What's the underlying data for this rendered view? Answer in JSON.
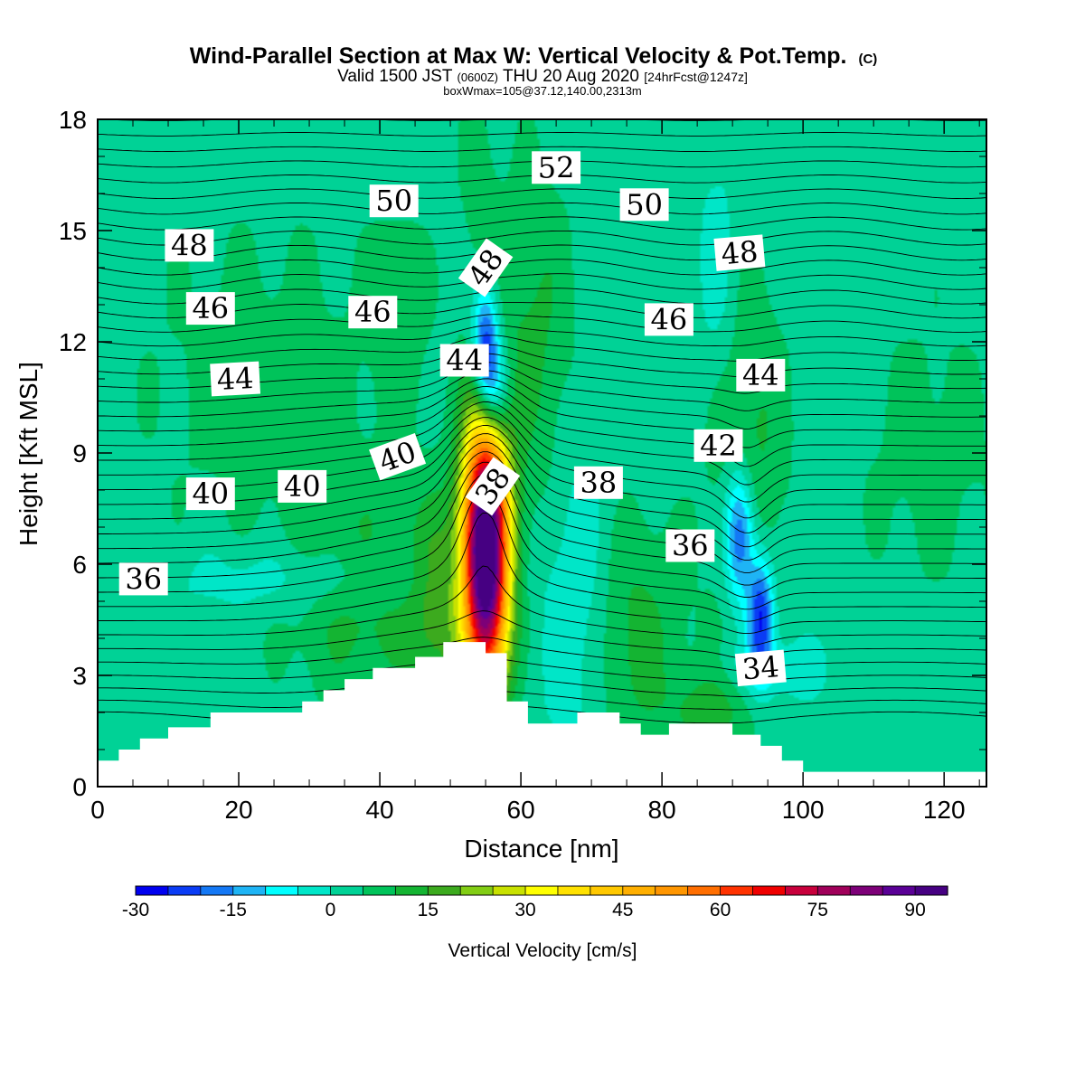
{
  "chart_data": {
    "type": "heatmap",
    "title": {
      "main": "Wind-Parallel Section at Max W: Vertical Velocity & Pot.Temp.",
      "copyright": "(C)",
      "valid_prefix": "Valid 1500 JST",
      "valid_utc": "(0600Z)",
      "valid_date": "THU 20 Aug 2020",
      "forecast": "[24hrFcst@1247z]",
      "boxwmax": "boxWmax=105@37.12,140.00,2313m"
    },
    "xlabel": "Distance [nm]",
    "ylabel": "Height [Kft MSL]",
    "xlim": [
      0,
      126
    ],
    "ylim": [
      0,
      18
    ],
    "x_ticks": [
      0,
      20,
      40,
      60,
      80,
      100,
      120
    ],
    "y_ticks": [
      0,
      3,
      6,
      9,
      12,
      15,
      18
    ],
    "colorbar": {
      "label": "Vertical Velocity [cm/s]",
      "min": -30,
      "max": 95,
      "step": 5,
      "tick_values": [
        -30,
        -15,
        0,
        15,
        30,
        45,
        60,
        75,
        90
      ],
      "tick_labels": [
        "-30",
        "-15",
        "0",
        "15",
        "30",
        "45",
        "60",
        "75",
        "90"
      ],
      "colors": [
        "#0000f0",
        "#0a3cf5",
        "#1478f5",
        "#1eb4f5",
        "#00ffff",
        "#00e6c8",
        "#00d296",
        "#00c35a",
        "#14b432",
        "#3caa1e",
        "#82cd14",
        "#c8e100",
        "#ffff00",
        "#ffe100",
        "#ffc800",
        "#ffaf00",
        "#ff9600",
        "#ff6e00",
        "#ff3200",
        "#f00000",
        "#c8003c",
        "#a0005a",
        "#7d0078",
        "#5a0096",
        "#460082"
      ]
    },
    "terrain_nm_kft": [
      [
        0,
        0.7
      ],
      [
        3,
        0.7
      ],
      [
        3,
        1.0
      ],
      [
        6,
        1.0
      ],
      [
        6,
        1.3
      ],
      [
        10,
        1.3
      ],
      [
        10,
        1.6
      ],
      [
        16,
        1.6
      ],
      [
        16,
        2.0
      ],
      [
        29,
        2.0
      ],
      [
        29,
        2.3
      ],
      [
        32,
        2.3
      ],
      [
        32,
        2.6
      ],
      [
        35,
        2.6
      ],
      [
        35,
        2.9
      ],
      [
        39,
        2.9
      ],
      [
        39,
        3.2
      ],
      [
        45,
        3.2
      ],
      [
        45,
        3.5
      ],
      [
        49,
        3.5
      ],
      [
        49,
        3.9
      ],
      [
        55,
        3.9
      ],
      [
        55,
        3.6
      ],
      [
        58,
        3.6
      ],
      [
        58,
        2.3
      ],
      [
        61,
        2.3
      ],
      [
        61,
        1.7
      ],
      [
        68,
        1.7
      ],
      [
        68,
        2.0
      ],
      [
        74,
        2.0
      ],
      [
        74,
        1.7
      ],
      [
        77,
        1.7
      ],
      [
        77,
        1.4
      ],
      [
        81,
        1.4
      ],
      [
        81,
        1.7
      ],
      [
        90,
        1.7
      ],
      [
        90,
        1.4
      ],
      [
        94,
        1.4
      ],
      [
        94,
        1.1
      ],
      [
        97,
        1.1
      ],
      [
        97,
        0.7
      ],
      [
        100,
        0.7
      ],
      [
        100,
        0.4
      ],
      [
        126,
        0.4
      ]
    ],
    "w_features": [
      {
        "x": 55,
        "y": 6.3,
        "sx": 2.3,
        "sy": 2.6,
        "amp": 105
      },
      {
        "x": 55,
        "y": 11.8,
        "sx": 1.3,
        "sy": 1.2,
        "amp": -32
      },
      {
        "x": 56.5,
        "y": 10.6,
        "sx": 1.5,
        "sy": 1.0,
        "amp": -20
      },
      {
        "x": 91,
        "y": 6.8,
        "sx": 1.5,
        "sy": 1.3,
        "amp": -28
      },
      {
        "x": 94,
        "y": 4.6,
        "sx": 1.3,
        "sy": 1.1,
        "amp": -30
      },
      {
        "x": 94,
        "y": 3.2,
        "sx": 6,
        "sy": 0.6,
        "amp": -8
      },
      {
        "x": 68,
        "y": 5,
        "sx": 3.5,
        "sy": 3,
        "amp": -8
      },
      {
        "x": 30,
        "y": 5.6,
        "sx": 14,
        "sy": 0.7,
        "amp": -7
      },
      {
        "x": 88,
        "y": 13.5,
        "sx": 2,
        "sy": 2.5,
        "amp": -6
      },
      {
        "x": 38,
        "y": 5,
        "sx": 8,
        "sy": 2,
        "amp": 10
      },
      {
        "x": 76,
        "y": 4,
        "sx": 5,
        "sy": 2.5,
        "amp": 10
      },
      {
        "x": 87,
        "y": 2.2,
        "sx": 4,
        "sy": 1,
        "amp": 10
      },
      {
        "x": 48,
        "y": 5,
        "sx": 2.5,
        "sy": 2,
        "amp": 12
      },
      {
        "x": 62,
        "y": 12,
        "sx": 4,
        "sy": 3.5,
        "amp": 9
      },
      {
        "x": 92,
        "y": 9,
        "sx": 4,
        "sy": 3.5,
        "amp": 10
      },
      {
        "x": 24,
        "y": 11,
        "sx": 14,
        "sy": 3.5,
        "amp": 5
      },
      {
        "x": 118,
        "y": 9,
        "sx": 8,
        "sy": 3,
        "amp": 5
      },
      {
        "x": 54,
        "y": 16.5,
        "sx": 2,
        "sy": 2,
        "amp": 5
      },
      {
        "x": 43,
        "y": 13,
        "sx": 3,
        "sy": 2,
        "amp": 5
      }
    ],
    "theta_contours": {
      "levels": [
        34,
        36,
        38,
        40,
        42,
        44,
        46,
        48,
        50,
        52
      ],
      "step": 0.5,
      "shown_range": [
        32.5,
        53
      ]
    },
    "theta_labels": [
      {
        "text": "52",
        "x": 65,
        "y": 16.7,
        "rot": 0
      },
      {
        "text": "50",
        "x": 42,
        "y": 15.8,
        "rot": 0
      },
      {
        "text": "50",
        "x": 77.5,
        "y": 15.7,
        "rot": 0
      },
      {
        "text": "48",
        "x": 13,
        "y": 14.6,
        "rot": 0
      },
      {
        "text": "48",
        "x": 55,
        "y": 14.0,
        "rot": -55
      },
      {
        "text": "48",
        "x": 91,
        "y": 14.4,
        "rot": -5
      },
      {
        "text": "46",
        "x": 16,
        "y": 12.9,
        "rot": 0
      },
      {
        "text": "46",
        "x": 39,
        "y": 12.8,
        "rot": 0
      },
      {
        "text": "46",
        "x": 81,
        "y": 12.6,
        "rot": 0
      },
      {
        "text": "44",
        "x": 19.5,
        "y": 11.0,
        "rot": -3
      },
      {
        "text": "44",
        "x": 52,
        "y": 11.5,
        "rot": 0
      },
      {
        "text": "44",
        "x": 94,
        "y": 11.1,
        "rot": 0
      },
      {
        "text": "42",
        "x": 88,
        "y": 9.2,
        "rot": 0
      },
      {
        "text": "40",
        "x": 16,
        "y": 7.9,
        "rot": 0
      },
      {
        "text": "40",
        "x": 29,
        "y": 8.1,
        "rot": 0
      },
      {
        "text": "40",
        "x": 42.5,
        "y": 8.9,
        "rot": -20
      },
      {
        "text": "38",
        "x": 56,
        "y": 8.1,
        "rot": -55
      },
      {
        "text": "38",
        "x": 71,
        "y": 8.2,
        "rot": 0
      },
      {
        "text": "36",
        "x": 6.5,
        "y": 5.6,
        "rot": 0
      },
      {
        "text": "36",
        "x": 84,
        "y": 6.5,
        "rot": 0
      },
      {
        "text": "34",
        "x": 94,
        "y": 3.2,
        "rot": -5
      }
    ]
  }
}
